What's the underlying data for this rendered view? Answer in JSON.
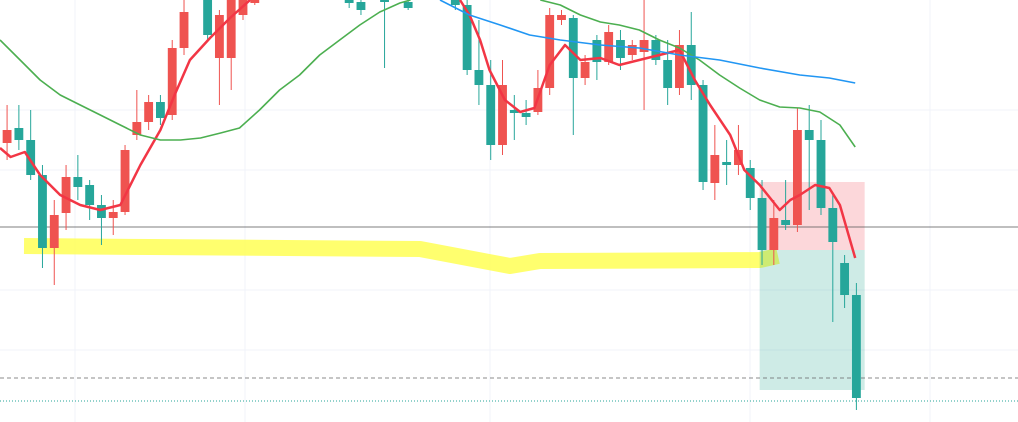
{
  "chart_data": {
    "type": "candlestick",
    "xlim": [
      -0.6,
      85.7
    ],
    "ylim": [
      0,
      422
    ],
    "up_color": "#ef5350",
    "down_color": "#26a69a",
    "x": [
      0,
      1,
      2,
      3,
      4,
      5,
      6,
      7,
      8,
      9,
      10,
      11,
      12,
      13,
      14,
      15,
      17,
      18,
      19,
      20,
      21,
      29,
      30,
      32,
      34,
      38,
      39,
      40,
      41,
      42,
      43,
      44,
      45,
      46,
      47,
      48,
      49,
      50,
      51,
      52,
      53,
      54,
      55,
      56,
      57,
      58,
      59,
      60,
      61,
      62,
      63,
      64,
      65,
      66,
      67,
      68,
      69,
      70,
      71,
      72
    ],
    "open": [
      279,
      294,
      282,
      247,
      174,
      209,
      245,
      237,
      217,
      204,
      210,
      287,
      300,
      320,
      307,
      374,
      422,
      364,
      364,
      407,
      419,
      422,
      420,
      422,
      420,
      432,
      417,
      352,
      337,
      277,
      312,
      309,
      310,
      334,
      402,
      404,
      344,
      382,
      360,
      382,
      367,
      370,
      382,
      362,
      334,
      377,
      337,
      239,
      260,
      257,
      254,
      224,
      172,
      202,
      197,
      292,
      282,
      214,
      159,
      127
    ],
    "high": [
      317,
      317,
      312,
      257,
      222,
      257,
      267,
      242,
      227,
      222,
      277,
      332,
      327,
      327,
      382,
      422,
      427,
      412,
      432,
      427,
      427,
      427,
      427,
      427,
      427,
      442,
      422,
      402,
      362,
      362,
      327,
      322,
      352,
      414,
      412,
      407,
      367,
      387,
      397,
      392,
      382,
      422,
      387,
      382,
      392,
      410,
      342,
      297,
      282,
      297,
      262,
      242,
      222,
      242,
      314,
      317,
      302,
      227,
      167,
      139
    ],
    "low": [
      262,
      272,
      242,
      154,
      137,
      192,
      222,
      202,
      177,
      187,
      207,
      282,
      292,
      297,
      302,
      367,
      382,
      317,
      332,
      402,
      417,
      414,
      407,
      354,
      412,
      412,
      347,
      317,
      262,
      267,
      282,
      297,
      307,
      327,
      397,
      287,
      337,
      342,
      357,
      352,
      362,
      312,
      357,
      317,
      327,
      322,
      232,
      222,
      237,
      247,
      212,
      157,
      157,
      192,
      190,
      212,
      207,
      100,
      114,
      12
    ],
    "close": [
      292,
      282,
      247,
      174,
      207,
      245,
      235,
      217,
      204,
      210,
      272,
      300,
      320,
      304,
      374,
      410,
      387,
      407,
      422,
      422,
      422,
      419,
      412,
      420,
      414,
      417,
      352,
      337,
      277,
      337,
      309,
      305,
      334,
      407,
      407,
      344,
      360,
      360,
      390,
      364,
      377,
      382,
      362,
      334,
      377,
      337,
      240,
      267,
      257,
      272,
      224,
      172,
      204,
      197,
      292,
      282,
      214,
      180,
      127,
      24
    ],
    "lines": [
      {
        "color": "#f23645",
        "x": [
          -0.6,
          0.3,
          1.5,
          2.8,
          4.5,
          6.2,
          7.9,
          9.6,
          11.3,
          13,
          14.2,
          15.5,
          17.2,
          18.9,
          20.6,
          null,
          38.4,
          39.2,
          40.1,
          40.9,
          42.2,
          43.5,
          44.7,
          46,
          47.3,
          48.6,
          50.3,
          51.9,
          53.6,
          55.3,
          57,
          58.3,
          59.6,
          61.3,
          62.5,
          63.8,
          65.5,
          66.4,
          67.2,
          68.5,
          69.7,
          70.6,
          71.9
        ],
        "values": [
          274,
          265,
          270,
          247,
          227,
          217,
          212,
          217,
          257,
          292,
          327,
          362,
          384,
          404,
          422,
          null,
          422,
          407,
          382,
          352,
          322,
          310,
          314,
          357,
          377,
          362,
          364,
          357,
          362,
          367,
          372,
          342,
          317,
          287,
          252,
          237,
          212,
          222,
          227,
          237,
          234,
          217,
          164
        ]
      },
      {
        "color": "#4caf50",
        "x": [
          -0.6,
          1.1,
          2.8,
          4.5,
          6.2,
          7.9,
          9.6,
          11.3,
          13,
          14.7,
          16.4,
          18.1,
          19.7,
          21.4,
          23.1,
          24.8,
          26.5,
          28.2,
          29.9,
          31.6,
          33.3,
          34.2,
          null,
          45.2,
          46.9,
          48.6,
          50.3,
          51.9,
          53.6,
          55.3,
          57,
          58.7,
          60.4,
          62.1,
          63.8,
          65.5,
          67.2,
          68.9,
          70.6,
          71.9
        ],
        "values": [
          382,
          362,
          342,
          327,
          317,
          307,
          297,
          287,
          282,
          282,
          284,
          289,
          294,
          312,
          332,
          347,
          367,
          382,
          397,
          410,
          419,
          422,
          null,
          422,
          417,
          407,
          400,
          397,
          392,
          382,
          374,
          362,
          347,
          334,
          322,
          315,
          314,
          310,
          297,
          275
        ]
      },
      {
        "color": "#2196f3",
        "x": [
          36.7,
          39.2,
          41.8,
          44.3,
          46.9,
          50.3,
          53.6,
          57,
          60.4,
          63.8,
          67.2,
          69.7,
          71.9
        ],
        "values": [
          422,
          407,
          397,
          387,
          382,
          377,
          374,
          367,
          362,
          354,
          347,
          344,
          339
        ]
      }
    ],
    "hline": 195,
    "dashed_line": 44,
    "dotted_line": 21,
    "position": {
      "x": [
        63.8,
        72.7
      ],
      "entry": 172,
      "stop": 240,
      "target": 32
    }
  }
}
